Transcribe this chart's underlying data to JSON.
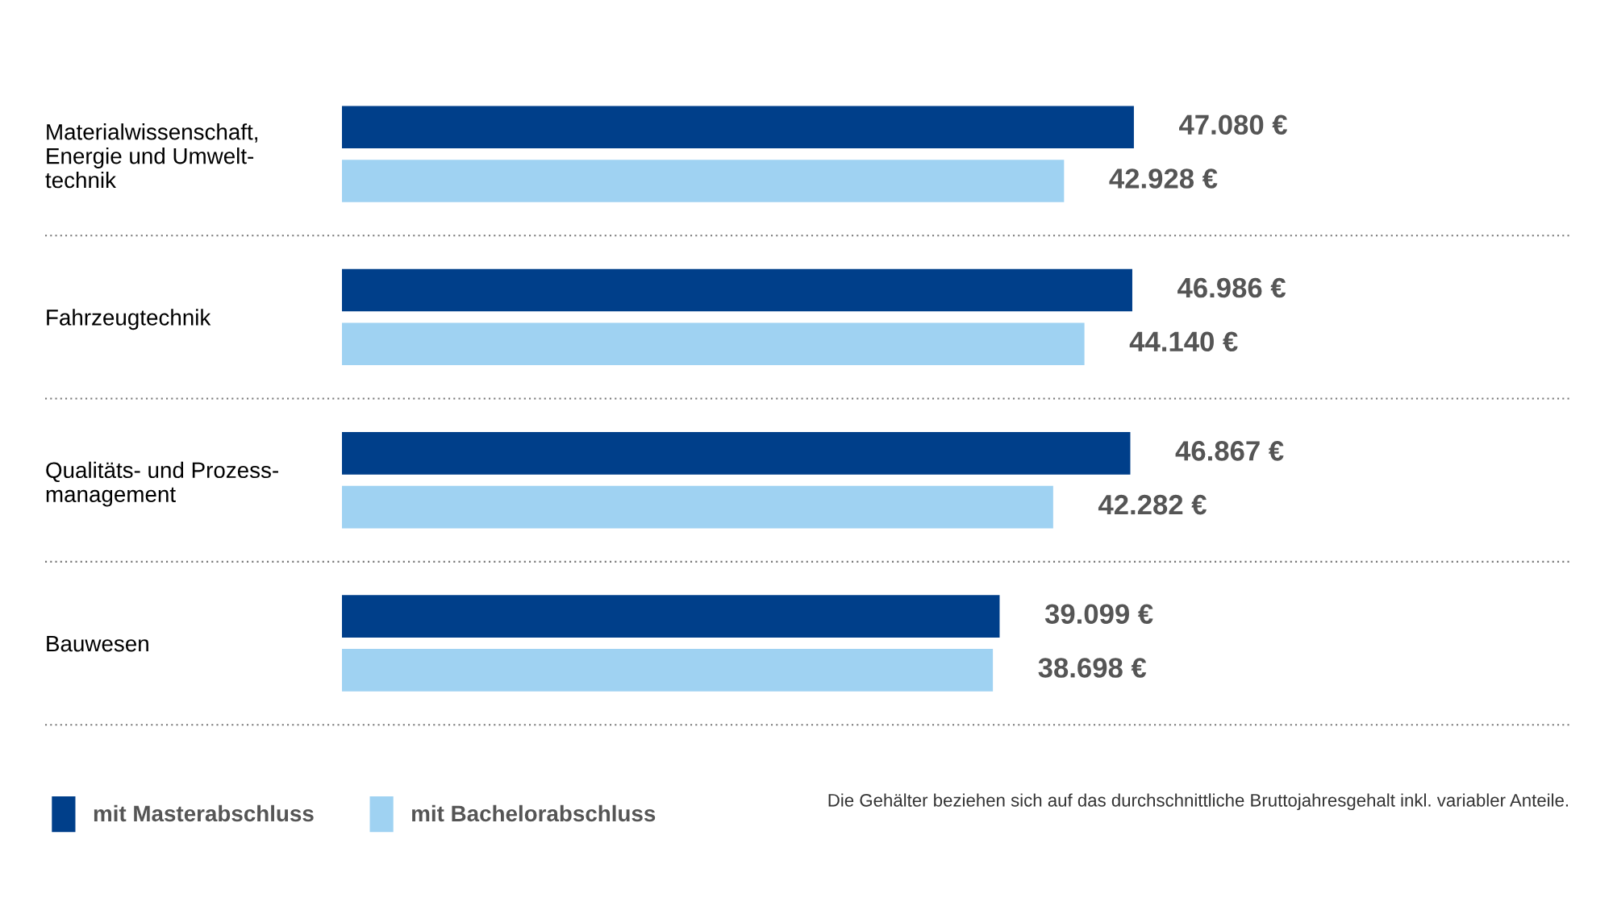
{
  "chart_data": {
    "type": "bar",
    "orientation": "horizontal",
    "categories": [
      "Materialwissenschaft,\nEnergie und Umwelt-\ntechnik",
      "Fahrzeugtechnik",
      "Qualitäts- und Prozess-\nmanagement",
      "Bauwesen"
    ],
    "series": [
      {
        "name": "mit Masterabschluss",
        "color": "#003f8a",
        "values": [
          47080,
          46986,
          46867,
          39099
        ],
        "value_labels": [
          "47.080 €",
          "46.986 €",
          "46.867 €",
          "39.099 €"
        ]
      },
      {
        "name": "mit Bachelorabschluss",
        "color": "#9fd2f2",
        "values": [
          42928,
          44140,
          42282,
          38698
        ],
        "value_labels": [
          "42.928 €",
          "44.140 €",
          "42.282 €",
          "38.698 €"
        ]
      }
    ],
    "legend": "bottom left",
    "grid": false,
    "annotations": [
      "Die Gehälter beziehen sich auf das durchschnittliche Bruttojahresgehalt inkl. variabler Anteile."
    ]
  }
}
